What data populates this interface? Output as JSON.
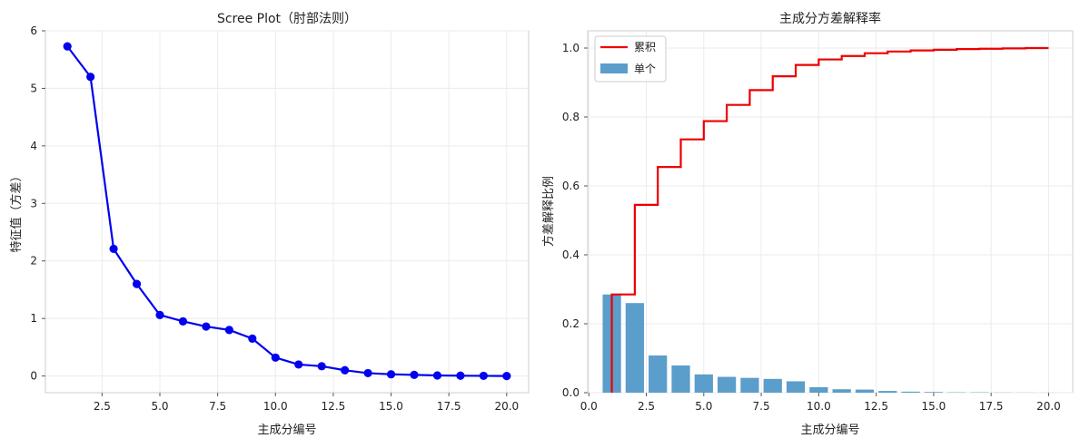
{
  "chart_data": [
    {
      "type": "line",
      "title": "Scree Plot（肘部法则）",
      "xlabel": "主成分编号",
      "ylabel": "特征值（方差）",
      "xlim": [
        0.05,
        20.95
      ],
      "ylim": [
        -0.29,
        6.0
      ],
      "xticks": [
        2.5,
        5.0,
        7.5,
        10.0,
        12.5,
        15.0,
        17.5,
        20.0
      ],
      "xtick_labels": [
        "2.5",
        "5.0",
        "7.5",
        "10.0",
        "12.5",
        "15.0",
        "17.5",
        "20.0"
      ],
      "yticks": [
        0,
        1,
        2,
        3,
        4,
        5,
        6
      ],
      "ytick_labels": [
        "0",
        "1",
        "2",
        "3",
        "4",
        "5",
        "6"
      ],
      "grid": true,
      "color": "#0000ee",
      "x": [
        1,
        2,
        3,
        4,
        5,
        6,
        7,
        8,
        9,
        10,
        11,
        12,
        13,
        14,
        15,
        16,
        17,
        18,
        19,
        20
      ],
      "y": [
        5.73,
        5.2,
        2.21,
        1.6,
        1.06,
        0.95,
        0.86,
        0.8,
        0.65,
        0.32,
        0.2,
        0.17,
        0.1,
        0.05,
        0.03,
        0.02,
        0.01,
        0.005,
        0.003,
        0.0
      ]
    },
    {
      "type": "bar",
      "title": "主成分方差解释率",
      "xlabel": "主成分编号",
      "ylabel": "方差解释比例",
      "xlim": [
        -0.05,
        21.05
      ],
      "ylim": [
        0.0,
        1.05
      ],
      "xticks": [
        0.0,
        2.5,
        5.0,
        7.5,
        10.0,
        12.5,
        15.0,
        17.5,
        20.0
      ],
      "xtick_labels": [
        "0.0",
        "2.5",
        "5.0",
        "7.5",
        "10.0",
        "12.5",
        "15.0",
        "17.5",
        "20.0"
      ],
      "yticks": [
        0.0,
        0.2,
        0.4,
        0.6,
        0.8,
        1.0
      ],
      "ytick_labels": [
        "0.0",
        "0.2",
        "0.4",
        "0.6",
        "0.8",
        "1.0"
      ],
      "grid": true,
      "legend_position": "top-left",
      "x": [
        1,
        2,
        3,
        4,
        5,
        6,
        7,
        8,
        9,
        10,
        11,
        12,
        13,
        14,
        15,
        16,
        17,
        18,
        19,
        20
      ],
      "series": [
        {
          "name": "累积",
          "kind": "step",
          "color": "#ee0000",
          "values": [
            0.285,
            0.545,
            0.655,
            0.735,
            0.788,
            0.835,
            0.878,
            0.918,
            0.951,
            0.967,
            0.977,
            0.985,
            0.99,
            0.993,
            0.995,
            0.997,
            0.998,
            0.999,
            1.0,
            1.0
          ]
        },
        {
          "name": "单个",
          "kind": "bar",
          "color": "#5b9dcb",
          "values": [
            0.285,
            0.26,
            0.108,
            0.079,
            0.053,
            0.046,
            0.043,
            0.04,
            0.033,
            0.016,
            0.01,
            0.009,
            0.005,
            0.003,
            0.002,
            0.001,
            0.001,
            0.0005,
            0.0003,
            0.0002
          ]
        }
      ]
    }
  ]
}
